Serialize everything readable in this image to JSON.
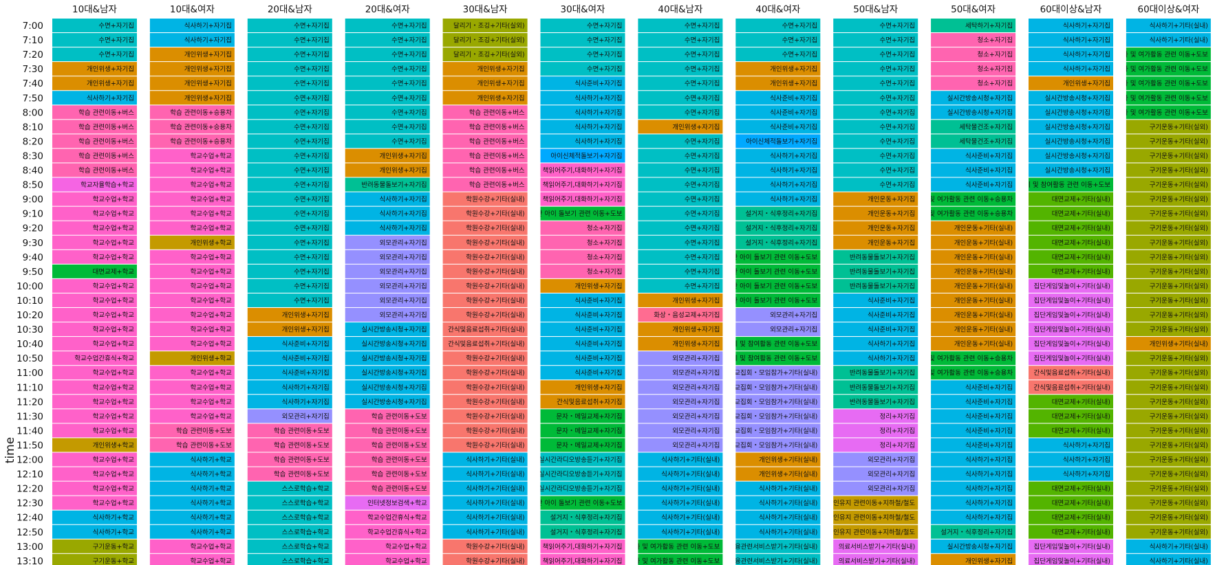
{
  "chart_data": {
    "type": "table",
    "ylabel": "time",
    "columns": [
      "10대&남자",
      "10대&여자",
      "20대&남자",
      "20대&여자",
      "30대&남자",
      "30대&여자",
      "40대&남자",
      "40대&여자",
      "50대&남자",
      "50대&여자",
      "60대이상&남자",
      "60대이상&여자"
    ],
    "times": [
      "7:00",
      "7:10",
      "7:20",
      "7:30",
      "7:40",
      "7:50",
      "8:00",
      "8:10",
      "8:20",
      "8:30",
      "8:40",
      "8:50",
      "9:00",
      "9:10",
      "9:20",
      "9:30",
      "9:40",
      "9:50",
      "10:00",
      "10:10",
      "10:20",
      "10:30",
      "10:40",
      "10:50",
      "11:00",
      "11:10",
      "11:20",
      "11:30",
      "11:40",
      "11:50",
      "12:00",
      "12:10",
      "12:20",
      "12:30",
      "12:40",
      "12:50",
      "13:00",
      "13:10"
    ],
    "colors": {
      "수면+자기집": "#00BFC4",
      "식사하기+자기집": "#00B4E4",
      "식사하기+학교": "#00B4E4",
      "식사하기+기타(실내)": "#00B4E4",
      "식사준비+자기집": "#00B4E4",
      "개인위생+자기집": "#DB8E00",
      "개인위생+학교": "#C49A00",
      "개인위생+기타(실내)": "#DB8E00",
      "개인운동+자기집": "#DB8E00",
      "개인운동+기타(실내)": "#DB8E00",
      "학습 관련이동+버스": "#FF64B0",
      "학습 관련이동+승용차": "#FF64B0",
      "학습 관련이동+도보": "#FF64B0",
      "학교자율학습+학교": "#F564E3",
      "학교수업+학교": "#FF61C9",
      "학교수업간휴식+학교": "#FF61C9",
      "대면교제+학교": "#00BA38",
      "대면교제+기타(실내)": "#53B400",
      "구기운동+학교": "#99A800",
      "구기운동+기타(실외)": "#99A800",
      "달리기・조깅+기타(실외)": "#99A800",
      "반려동물돌보기+자기집": "#00C094",
      "외모관리+자기집": "#9590FF",
      "실시간방송시청+자기집": "#00B4E4",
      "스스로학습+학교": "#00BFC4",
      "인터넷정보검색+학교": "#E76BF3",
      "학원수강+기타(실내)": "#F8766D",
      "간식및음료섭취+기타(실내)": "#F8766D",
      "간식및음료섭취+자기집": "#DB8E00",
      "청소+자기집": "#FF64B0",
      "아이신체적돌보기+자기집": "#00A9FF",
      "책읽어주기,대화하기+자기집": "#FF61C9",
      "만 아이 돌보기 관련 이동+도보": "#00BA38",
      "문자・메일교제+자기집": "#00BA38",
      "실시간라디오방송듣기+자기집": "#00BFC4",
      "설거지・식후정리+자기집": "#00C094",
      "화상・음성교제+자기집": "#FF6C91",
      "세탁물건조+자기집": "#00C094",
      "세탁하기+자기집": "#00C094",
      "제 및 참여활동 관련 이동+도보": "#00BA38",
      "제 및 참여활동 관련 이동+승용차": "#00BA38",
      "화 및 여가활동 관련 이동+도보": "#00BA38",
      "화 및 여가활동 관련 이동+승용차": "#00BA38",
      "종교집회・모임참가+기타(실내)": "#9590FF",
      "정리+자기집": "#E76BF3",
      "의료서비스받기+기타(실내)": "#E76BF3",
      "[인유지 관련이동+지하철/철도": "#C49A00",
      "[융관련서비스받기+기타(실내)": "#00BFC4",
      "집단게임및놀이+기타(실내)": "#E76BF3",
      "default": "#00BFC4"
    },
    "cells": [
      [
        "수면+자기집",
        "식사하기+자기집",
        "수면+자기집",
        "수면+자기집",
        "달리기・조깅+기타(실외)",
        "수면+자기집",
        "수면+자기집",
        "수면+자기집",
        "수면+자기집",
        "세탁하기+자기집",
        "식사하기+자기집",
        "식사하기+기타(실내)"
      ],
      [
        "수면+자기집",
        "식사하기+자기집",
        "수면+자기집",
        "수면+자기집",
        "달리기・조깅+기타(실외)",
        "수면+자기집",
        "수면+자기집",
        "수면+자기집",
        "수면+자기집",
        "청소+자기집",
        "식사하기+자기집",
        "식사하기+기타(실내)"
      ],
      [
        "수면+자기집",
        "개인위생+자기집",
        "수면+자기집",
        "수면+자기집",
        "달리기・조깅+기타(실외)",
        "수면+자기집",
        "수면+자기집",
        "수면+자기집",
        "수면+자기집",
        "청소+자기집",
        "식사하기+자기집",
        "화 및 여가활동 관련 이동+도보"
      ],
      [
        "개인위생+자기집",
        "개인위생+자기집",
        "수면+자기집",
        "수면+자기집",
        "개인위생+자기집",
        "수면+자기집",
        "수면+자기집",
        "개인위생+자기집",
        "수면+자기집",
        "청소+자기집",
        "식사하기+자기집",
        "화 및 여가활동 관련 이동+도보"
      ],
      [
        "개인위생+자기집",
        "개인위생+자기집",
        "수면+자기집",
        "수면+자기집",
        "개인위생+자기집",
        "식사준비+자기집",
        "수면+자기집",
        "개인위생+자기집",
        "수면+자기집",
        "청소+자기집",
        "개인위생+자기집",
        "화 및 여가활동 관련 이동+도보"
      ],
      [
        "식사하기+자기집",
        "개인위생+자기집",
        "수면+자기집",
        "수면+자기집",
        "개인위생+자기집",
        "식사하기+자기집",
        "수면+자기집",
        "식사준비+자기집",
        "수면+자기집",
        "실시간방송시청+자기집",
        "실시간방송시청+자기집",
        "화 및 여가활동 관련 이동+도보"
      ],
      [
        "학습 관련이동+버스",
        "학습 관련이동+승용차",
        "수면+자기집",
        "수면+자기집",
        "학습 관련이동+버스",
        "식사하기+자기집",
        "수면+자기집",
        "식사준비+자기집",
        "수면+자기집",
        "실시간방송시청+자기집",
        "실시간방송시청+자기집",
        "화 및 여가활동 관련 이동+도보"
      ],
      [
        "학습 관련이동+버스",
        "학습 관련이동+승용차",
        "수면+자기집",
        "수면+자기집",
        "학습 관련이동+버스",
        "식사하기+자기집",
        "개인위생+자기집",
        "식사준비+자기집",
        "수면+자기집",
        "세탁물건조+자기집",
        "실시간방송시청+자기집",
        "구기운동+기타(실외)"
      ],
      [
        "학습 관련이동+버스",
        "학습 관련이동+승용차",
        "수면+자기집",
        "수면+자기집",
        "학습 관련이동+버스",
        "식사하기+자기집",
        "수면+자기집",
        "아이신체적돌보기+자기집",
        "수면+자기집",
        "세탁물건조+자기집",
        "실시간방송시청+자기집",
        "구기운동+기타(실외)"
      ],
      [
        "학습 관련이동+버스",
        "학교수업+학교",
        "수면+자기집",
        "개인위생+자기집",
        "학습 관련이동+버스",
        "아이신체적돌보기+자기집",
        "수면+자기집",
        "식사하기+자기집",
        "수면+자기집",
        "식사준비+자기집",
        "실시간방송시청+자기집",
        "구기운동+기타(실외)"
      ],
      [
        "학습 관련이동+버스",
        "학교수업+학교",
        "수면+자기집",
        "개인위생+자기집",
        "학습 관련이동+버스",
        "책읽어주기,대화하기+자기집",
        "수면+자기집",
        "식사하기+자기집",
        "수면+자기집",
        "식사준비+자기집",
        "실시간방송시청+자기집",
        "구기운동+기타(실외)"
      ],
      [
        "학교자율학습+학교",
        "학교수업+학교",
        "수면+자기집",
        "반려동물돌보기+자기집",
        "학습 관련이동+버스",
        "책읽어주기,대화하기+자기집",
        "수면+자기집",
        "식사하기+자기집",
        "수면+자기집",
        "식사준비+자기집",
        "제 및 참여활동 관련 이동+도보",
        "구기운동+기타(실외)"
      ],
      [
        "학교수업+학교",
        "학교수업+학교",
        "수면+자기집",
        "식사하기+자기집",
        "학원수강+기타(실내)",
        "책읽어주기,대화하기+자기집",
        "수면+자기집",
        "식사하기+자기집",
        "개인운동+자기집",
        "화 및 여가활동 관련 이동+승용차",
        "대면교제+기타(실내)",
        "구기운동+기타(실외)"
      ],
      [
        "학교수업+학교",
        "학교수업+학교",
        "수면+자기집",
        "식사하기+자기집",
        "학원수강+기타(실내)",
        "만 아이 돌보기 관련 이동+도보",
        "수면+자기집",
        "설거지・식후정리+자기집",
        "개인운동+자기집",
        "화 및 여가활동 관련 이동+승용차",
        "대면교제+기타(실내)",
        "구기운동+기타(실외)"
      ],
      [
        "학교수업+학교",
        "학교수업+학교",
        "수면+자기집",
        "식사하기+자기집",
        "학원수강+기타(실내)",
        "청소+자기집",
        "수면+자기집",
        "설거지・식후정리+자기집",
        "개인운동+자기집",
        "개인운동+기타(실내)",
        "대면교제+기타(실내)",
        "구기운동+기타(실외)"
      ],
      [
        "학교수업+학교",
        "개인위생+학교",
        "수면+자기집",
        "외모관리+자기집",
        "학원수강+기타(실내)",
        "청소+자기집",
        "수면+자기집",
        "설거지・식후정리+자기집",
        "개인운동+자기집",
        "개인운동+기타(실내)",
        "대면교제+기타(실내)",
        "구기운동+기타(실외)"
      ],
      [
        "학교수업+학교",
        "학교수업+학교",
        "수면+자기집",
        "외모관리+자기집",
        "학원수강+기타(실내)",
        "청소+자기집",
        "수면+자기집",
        "만 아이 돌보기 관련 이동+도보",
        "반려동물돌보기+자기집",
        "개인운동+기타(실내)",
        "대면교제+기타(실내)",
        "구기운동+기타(실외)"
      ],
      [
        "대면교제+학교",
        "학교수업+학교",
        "수면+자기집",
        "외모관리+자기집",
        "학원수강+기타(실내)",
        "청소+자기집",
        "수면+자기집",
        "만 아이 돌보기 관련 이동+도보",
        "반려동물돌보기+자기집",
        "개인운동+기타(실내)",
        "대면교제+기타(실내)",
        "구기운동+기타(실외)"
      ],
      [
        "학교수업+학교",
        "학교수업+학교",
        "수면+자기집",
        "외모관리+자기집",
        "학원수강+기타(실내)",
        "개인위생+자기집",
        "수면+자기집",
        "만 아이 돌보기 관련 이동+도보",
        "반려동물돌보기+자기집",
        "개인운동+기타(실내)",
        "집단게임및놀이+기타(실내)",
        "구기운동+기타(실외)"
      ],
      [
        "학교수업+학교",
        "학교수업+학교",
        "수면+자기집",
        "외모관리+자기집",
        "학원수강+기타(실내)",
        "식사준비+자기집",
        "개인위생+자기집",
        "만 아이 돌보기 관련 이동+도보",
        "식사준비+자기집",
        "개인운동+기타(실내)",
        "집단게임및놀이+기타(실내)",
        "구기운동+기타(실외)"
      ],
      [
        "학교수업+학교",
        "학교수업+학교",
        "개인위생+자기집",
        "외모관리+자기집",
        "학원수강+기타(실내)",
        "식사준비+자기집",
        "화상・음성교제+자기집",
        "외모관리+자기집",
        "식사준비+자기집",
        "개인운동+기타(실내)",
        "집단게임및놀이+기타(실내)",
        "구기운동+기타(실외)"
      ],
      [
        "학교수업+학교",
        "학교수업+학교",
        "개인위생+자기집",
        "실시간방송시청+자기집",
        "간식및음료섭취+기타(실내)",
        "식사준비+자기집",
        "개인위생+자기집",
        "외모관리+자기집",
        "식사준비+자기집",
        "개인운동+기타(실내)",
        "집단게임및놀이+기타(실내)",
        "구기운동+기타(실외)"
      ],
      [
        "학교수업+학교",
        "학교수업+학교",
        "식사준비+자기집",
        "실시간방송시청+자기집",
        "간식및음료섭취+기타(실내)",
        "식사준비+자기집",
        "개인위생+자기집",
        "제 및 참여활동 관련 이동+도보",
        "식사하기+자기집",
        "개인운동+기타(실내)",
        "집단게임및놀이+기타(실내)",
        "개인위생+기타(실내)"
      ],
      [
        "학교수업간휴식+학교",
        "개인위생+학교",
        "식사준비+자기집",
        "실시간방송시청+자기집",
        "학원수강+기타(실내)",
        "식사준비+자기집",
        "외모관리+자기집",
        "제 및 참여활동 관련 이동+도보",
        "식사하기+자기집",
        "화 및 여가활동 관련 이동+승용차",
        "집단게임및놀이+기타(실내)",
        "구기운동+기타(실외)"
      ],
      [
        "학교수업+학교",
        "학교수업+학교",
        "식사준비+자기집",
        "실시간방송시청+자기집",
        "학원수강+기타(실내)",
        "식사준비+자기집",
        "외모관리+자기집",
        "종교집회・모임참가+기타(실내)",
        "반려동물돌보기+자기집",
        "화 및 여가활동 관련 이동+승용차",
        "간식및음료섭취+기타(실내)",
        "구기운동+기타(실외)"
      ],
      [
        "학교수업+학교",
        "학교수업+학교",
        "식사하기+자기집",
        "실시간방송시청+자기집",
        "학원수강+기타(실내)",
        "개인위생+자기집",
        "외모관리+자기집",
        "종교집회・모임참가+기타(실내)",
        "반려동물돌보기+자기집",
        "식사준비+자기집",
        "간식및음료섭취+기타(실내)",
        "구기운동+기타(실외)"
      ],
      [
        "학교수업+학교",
        "학교수업+학교",
        "식사하기+자기집",
        "실시간방송시청+자기집",
        "학원수강+기타(실내)",
        "간식및음료섭취+자기집",
        "외모관리+자기집",
        "종교집회・모임참가+기타(실내)",
        "반려동물돌보기+자기집",
        "식사준비+자기집",
        "대면교제+기타(실내)",
        "구기운동+기타(실외)"
      ],
      [
        "학교수업+학교",
        "학교수업+학교",
        "외모관리+자기집",
        "학습 관련이동+도보",
        "학원수강+기타(실내)",
        "문자・메일교제+자기집",
        "외모관리+자기집",
        "종교집회・모임참가+기타(실내)",
        "정리+자기집",
        "식사준비+자기집",
        "대면교제+기타(실내)",
        "구기운동+기타(실외)"
      ],
      [
        "학교수업+학교",
        "학습 관련이동+도보",
        "학습 관련이동+도보",
        "학습 관련이동+도보",
        "학원수강+기타(실내)",
        "문자・메일교제+자기집",
        "외모관리+자기집",
        "종교집회・모임참가+기타(실내)",
        "정리+자기집",
        "식사준비+자기집",
        "대면교제+기타(실내)",
        "구기운동+기타(실외)"
      ],
      [
        "개인위생+학교",
        "학습 관련이동+도보",
        "학습 관련이동+도보",
        "학습 관련이동+도보",
        "학원수강+기타(실내)",
        "문자・메일교제+자기집",
        "외모관리+자기집",
        "종교집회・모임참가+기타(실내)",
        "정리+자기집",
        "식사준비+자기집",
        "식사하기+자기집",
        "구기운동+기타(실외)"
      ],
      [
        "학교수업+학교",
        "식사하기+학교",
        "학습 관련이동+도보",
        "학습 관련이동+도보",
        "식사하기+기타(실내)",
        "실시간라디오방송듣기+자기집",
        "식사하기+기타(실내)",
        "개인위생+기타(실내)",
        "외모관리+자기집",
        "식사하기+자기집",
        "식사하기+자기집",
        "구기운동+기타(실외)"
      ],
      [
        "학교수업+학교",
        "식사하기+학교",
        "학습 관련이동+도보",
        "학습 관련이동+도보",
        "식사하기+기타(실내)",
        "실시간라디오방송듣기+자기집",
        "식사하기+기타(실내)",
        "개인위생+기타(실내)",
        "외모관리+자기집",
        "식사하기+자기집",
        "식사하기+자기집",
        "구기운동+기타(실외)"
      ],
      [
        "학교수업+학교",
        "식사하기+학교",
        "스스로학습+학교",
        "학습 관련이동+도보",
        "식사하기+기타(실내)",
        "실시간라디오방송듣기+자기집",
        "식사하기+기타(실내)",
        "식사하기+기타(실내)",
        "외모관리+자기집",
        "식사하기+자기집",
        "대면교제+기타(실내)",
        "구기운동+기타(실외)"
      ],
      [
        "학교수업+학교",
        "식사하기+학교",
        "스스로학습+학교",
        "인터넷정보검색+학교",
        "식사하기+기타(실내)",
        "만 아이 돌보기 관련 이동+도보",
        "식사하기+기타(실내)",
        "식사하기+기타(실내)",
        "[인유지 관련이동+지하철/철도",
        "식사하기+자기집",
        "대면교제+기타(실내)",
        "구기운동+기타(실외)"
      ],
      [
        "식사하기+학교",
        "식사하기+학교",
        "스스로학습+학교",
        "학교수업간휴식+학교",
        "식사하기+기타(실내)",
        "설거지・식후정리+자기집",
        "식사하기+기타(실내)",
        "식사하기+기타(실내)",
        "[인유지 관련이동+지하철/철도",
        "식사하기+자기집",
        "대면교제+기타(실내)",
        "구기운동+기타(실외)"
      ],
      [
        "식사하기+학교",
        "식사하기+학교",
        "스스로학습+학교",
        "학교수업간휴식+학교",
        "식사하기+기타(실내)",
        "설거지・식후정리+자기집",
        "식사하기+기타(실내)",
        "식사하기+기타(실내)",
        "[인유지 관련이동+지하철/철도",
        "설거지・식후정리+자기집",
        "대면교제+기타(실내)",
        "구기운동+기타(실외)"
      ],
      [
        "구기운동+학교",
        "학교수업+학교",
        "스스로학습+학교",
        "학교수업+학교",
        "학원수강+기타(실내)",
        "책읽어주기,대화하기+자기집",
        "화 및 여가활동 관련 이동+도보",
        "[융관련서비스받기+기타(실내)",
        "의료서비스받기+기타(실내)",
        "실시간방송시청+자기집",
        "집단게임및놀이+기타(실내)",
        "식사하기+기타(실내)"
      ],
      [
        "구기운동+학교",
        "학교수업+학교",
        "스스로학습+학교",
        "학교수업+학교",
        "학원수강+기타(실내)",
        "책읽어주기,대화하기+자기집",
        "화 및 여가활동 관련 이동+도보",
        "[융관련서비스받기+기타(실내)",
        "의료서비스받기+기타(실내)",
        "개인위생+자기집",
        "집단게임및놀이+기타(실내)",
        "식사하기+기타(실내)"
      ]
    ]
  }
}
